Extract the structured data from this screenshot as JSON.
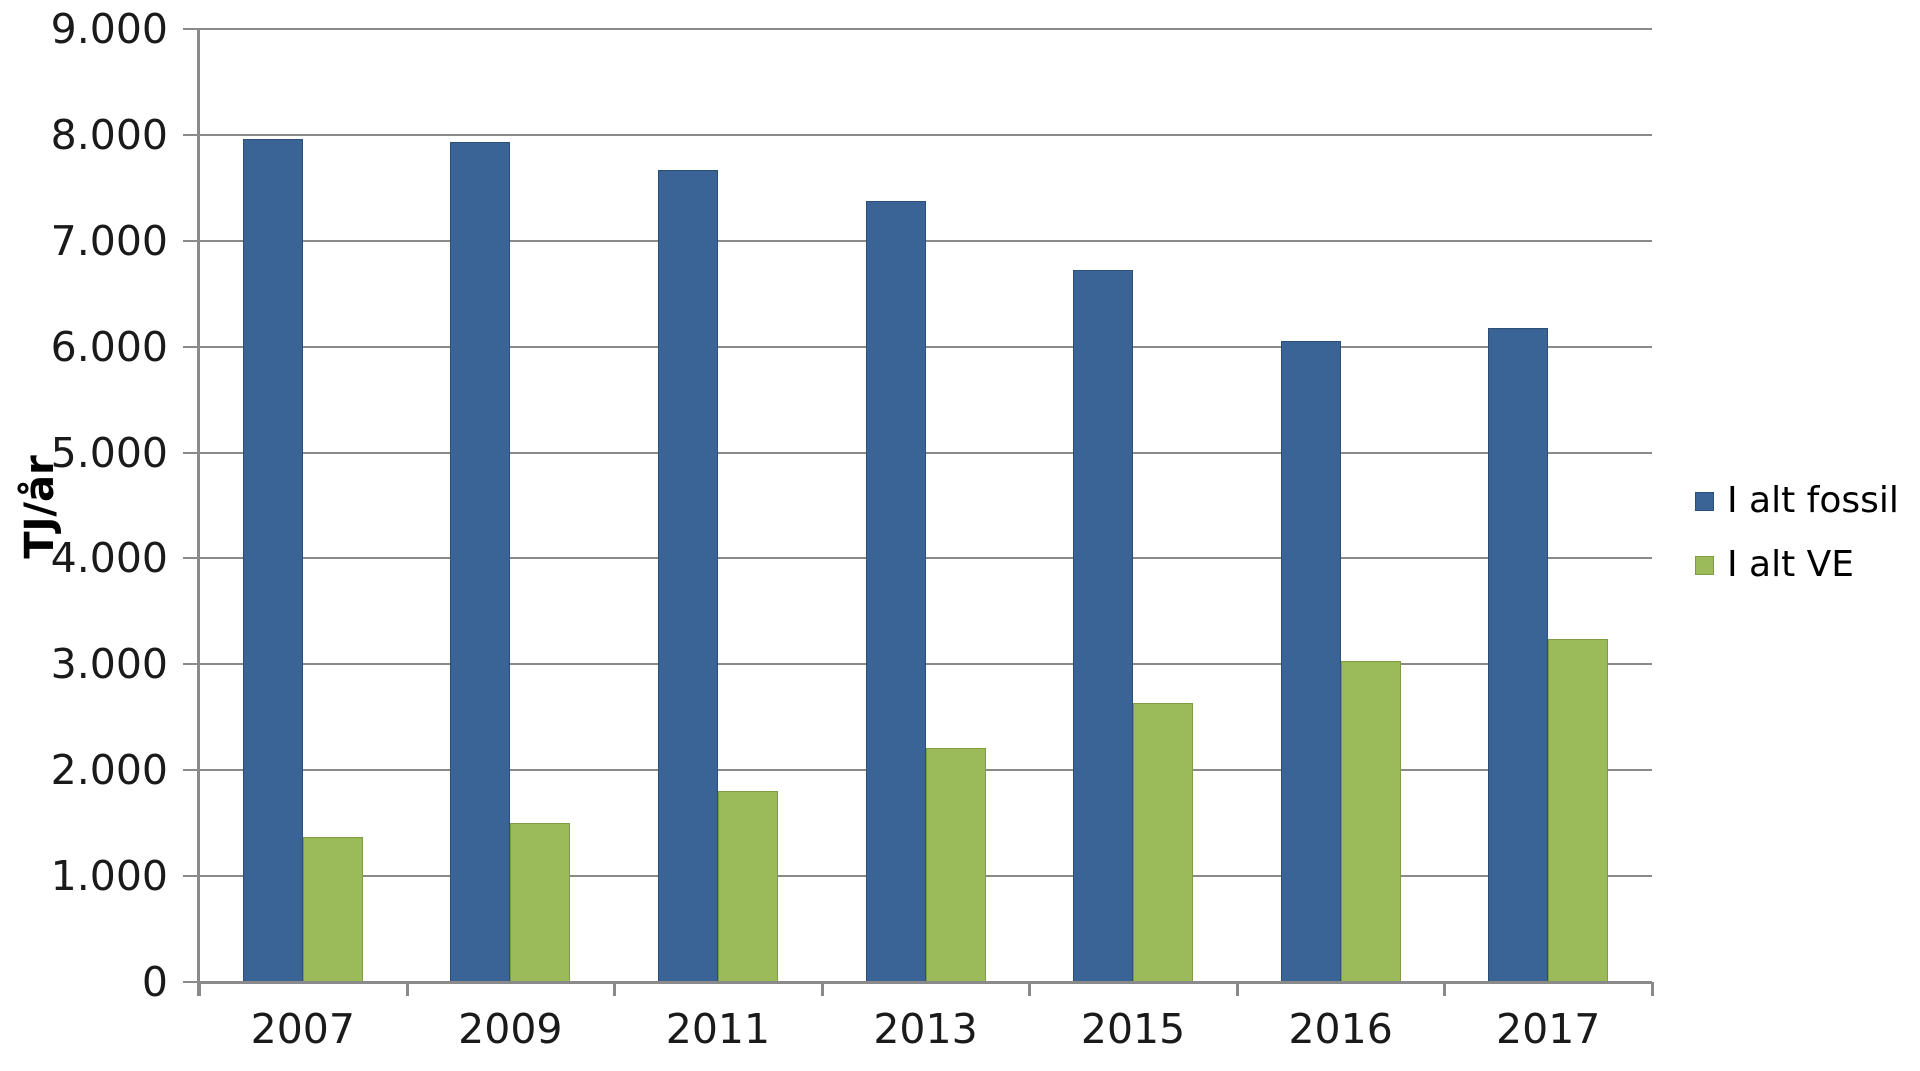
{
  "chart_data": {
    "type": "bar",
    "categories": [
      "2007",
      "2009",
      "2011",
      "2013",
      "2015",
      "2016",
      "2017"
    ],
    "series": [
      {
        "name": "I alt fossil",
        "color": "#3A6495",
        "border_color": "#2B4F79",
        "values": [
          7960,
          7930,
          7670,
          7375,
          6725,
          6055,
          6175
        ]
      },
      {
        "name": "I alt VE",
        "color": "#9BBA59",
        "border_color": "#7F9C44",
        "values": [
          1370,
          1500,
          1805,
          2210,
          2635,
          3030,
          3240
        ]
      }
    ],
    "title": "",
    "xlabel": "",
    "ylabel": "TJ/år",
    "ylim": [
      0,
      9000
    ],
    "ytick_interval": 1000,
    "ytick_labels": [
      "0",
      "1.000",
      "2.000",
      "3.000",
      "4.000",
      "5.000",
      "6.000",
      "7.000",
      "8.000",
      "9.000"
    ],
    "grid": true,
    "legend_position": "right",
    "axis_color": "#8A8A8A",
    "text_color": "#1A1A1A"
  }
}
